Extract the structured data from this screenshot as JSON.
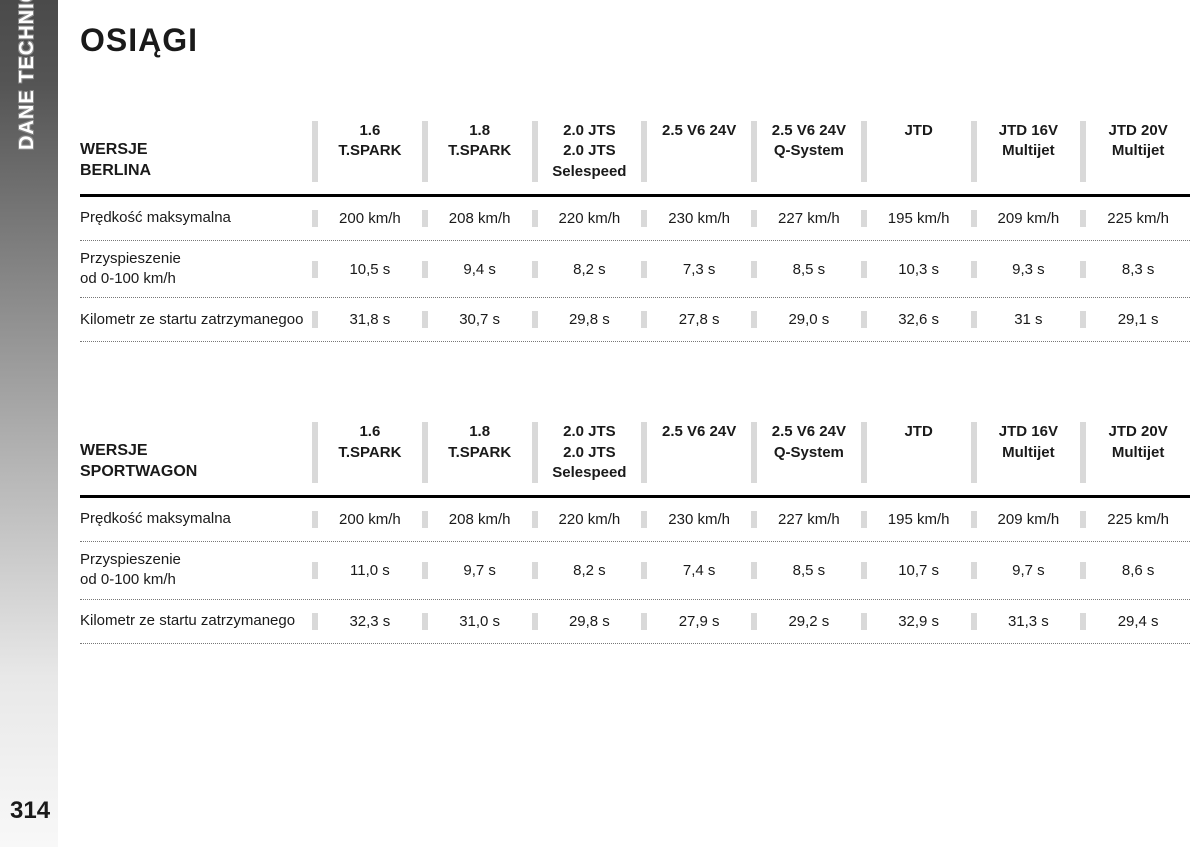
{
  "sidebar": {
    "label": "DANE TECHNICZNE",
    "page_number": "314"
  },
  "page": {
    "title": "OSIĄGI"
  },
  "tables": [
    {
      "header_title_line1": "WERSJE",
      "header_title_line2": "BERLINA",
      "columns": [
        "1.6\nT.SPARK",
        "1.8\nT.SPARK",
        "2.0 JTS\n2.0 JTS\nSelespeed",
        "2.5 V6 24V",
        "2.5 V6 24V\nQ-System",
        "JTD",
        "JTD 16V\nMultijet",
        "JTD 20V\nMultijet"
      ],
      "rows": [
        {
          "label": "Prędkość maksymalna",
          "values": [
            "200 km/h",
            "208 km/h",
            "220 km/h",
            "230 km/h",
            "227 km/h",
            "195 km/h",
            "209 km/h",
            "225 km/h"
          ]
        },
        {
          "label": "Przyspieszenie\nod 0-100 km/h",
          "values": [
            "10,5 s",
            "9,4 s",
            "8,2 s",
            "7,3 s",
            "8,5 s",
            "10,3 s",
            "9,3 s",
            "8,3 s"
          ]
        },
        {
          "label": "Kilometr ze startu zatrzymanegoo",
          "values": [
            "31,8 s",
            "30,7 s",
            "29,8 s",
            "27,8 s",
            "29,0 s",
            "32,6 s",
            "31 s",
            "29,1 s"
          ]
        }
      ]
    },
    {
      "header_title_line1": "WERSJE",
      "header_title_line2": "SPORTWAGON",
      "columns": [
        "1.6\nT.SPARK",
        "1.8\nT.SPARK",
        "2.0 JTS\n2.0 JTS\nSelespeed",
        "2.5 V6 24V",
        "2.5 V6 24V\nQ-System",
        "JTD",
        "JTD 16V\nMultijet",
        "JTD 20V\nMultijet"
      ],
      "rows": [
        {
          "label": "Prędkość maksymalna",
          "values": [
            "200 km/h",
            "208 km/h",
            "220 km/h",
            "230 km/h",
            "227 km/h",
            "195 km/h",
            "209 km/h",
            "225 km/h"
          ]
        },
        {
          "label": "Przyspieszenie\nod 0-100 km/h",
          "values": [
            "11,0 s",
            "9,7 s",
            "8,2 s",
            "7,4 s",
            "8,5 s",
            "10,7 s",
            "9,7 s",
            "8,6 s"
          ]
        },
        {
          "label": "Kilometr ze startu zatrzymanego",
          "values": [
            "32,3 s",
            "31,0 s",
            "29,8 s",
            "27,9 s",
            "29,2 s",
            "32,9 s",
            "31,3 s",
            "29,4 s"
          ]
        }
      ]
    }
  ]
}
